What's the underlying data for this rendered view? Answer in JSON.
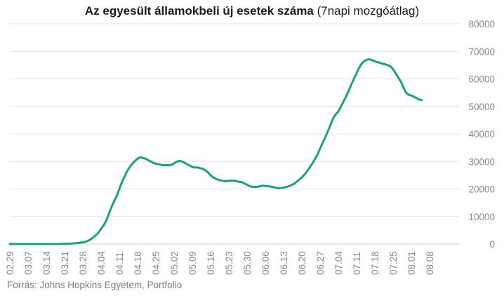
{
  "chart_data": {
    "type": "line",
    "title_bold": "Az egyesült államokbeli új esetek száma",
    "title_rest": " (7napi mozgóátlag)",
    "source": "Forrás: Johns Hopkins Egyetem, Portfolio",
    "x_tick_labels": [
      "02.29",
      "03.07",
      "03.14",
      "03.21",
      "03.28",
      "04.04",
      "04.11",
      "04.18",
      "04.25",
      "05.02",
      "05.09",
      "05.16",
      "05.23",
      "05.30",
      "06.06",
      "06.13",
      "06.20",
      "06.27",
      "07.04",
      "07.11",
      "07.18",
      "07.25",
      "08.01",
      "08.08"
    ],
    "y_tick_labels": [
      "0",
      "10000",
      "20000",
      "30000",
      "40000",
      "50000",
      "60000",
      "70000",
      "80000"
    ],
    "ylim": [
      0,
      80000
    ],
    "grid": true,
    "line_color": "#1aa37a",
    "series": [
      {
        "name": "",
        "x_start": "02.29",
        "step_days": 1,
        "values": [
          0,
          0,
          0,
          0,
          0,
          0,
          0,
          0,
          0,
          0,
          0,
          0,
          0,
          0,
          0,
          0,
          0,
          0,
          0,
          0,
          50,
          80,
          100,
          150,
          200,
          300,
          400,
          500,
          600,
          800,
          1200,
          1700,
          2400,
          3200,
          4200,
          5500,
          6800,
          8500,
          11000,
          13500,
          15500,
          17500,
          20000,
          22500,
          24500,
          26500,
          28000,
          29200,
          30200,
          31000,
          31500,
          31300,
          31000,
          30500,
          30000,
          29500,
          29200,
          29000,
          28800,
          28600,
          28700,
          28600,
          28800,
          29300,
          29900,
          30200,
          30000,
          29500,
          29000,
          28500,
          28000,
          27800,
          27800,
          27600,
          27300,
          26800,
          26000,
          25000,
          24200,
          23700,
          23300,
          23100,
          22900,
          22800,
          23000,
          23000,
          23000,
          22800,
          22600,
          22500,
          22000,
          21500,
          21000,
          20800,
          20700,
          20800,
          21000,
          21200,
          21100,
          21000,
          20900,
          20700,
          20500,
          20300,
          20300,
          20500,
          20700,
          21000,
          21400,
          21900,
          22600,
          23400,
          24200,
          25200,
          26400,
          27800,
          29200,
          30800,
          32500,
          34700,
          36800,
          38800,
          41000,
          43300,
          45700,
          47100,
          48200,
          50000,
          51800,
          53700,
          55800,
          58000,
          60100,
          62100,
          64100,
          65600,
          66500,
          67000,
          67100,
          66800,
          66400,
          66100,
          65800,
          65500,
          65300,
          65000,
          64500,
          63500,
          62000,
          60500,
          59000,
          56800,
          55000,
          54200,
          54000,
          53500,
          53000,
          52500,
          52300
        ]
      }
    ]
  }
}
